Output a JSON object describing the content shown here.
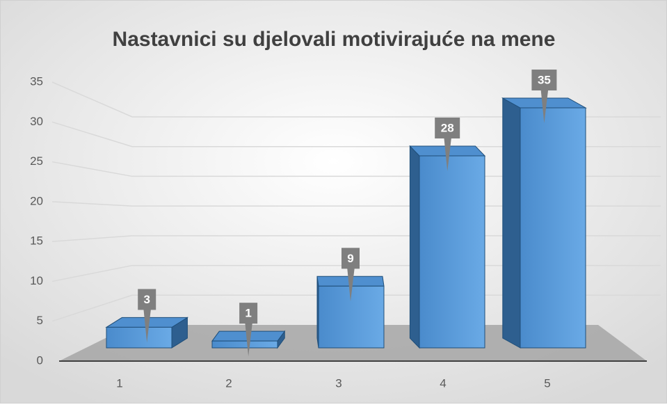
{
  "chart_data": {
    "type": "bar",
    "title": "Nastavnici su djelovali motivirajuće na mene",
    "categories": [
      "1",
      "2",
      "3",
      "4",
      "5"
    ],
    "values": [
      3,
      1,
      9,
      28,
      35
    ],
    "color": "#5b9bd5",
    "ylim": [
      0,
      35
    ],
    "yticks": [
      0,
      5,
      10,
      15,
      20,
      25,
      30,
      35
    ],
    "grid": true
  }
}
